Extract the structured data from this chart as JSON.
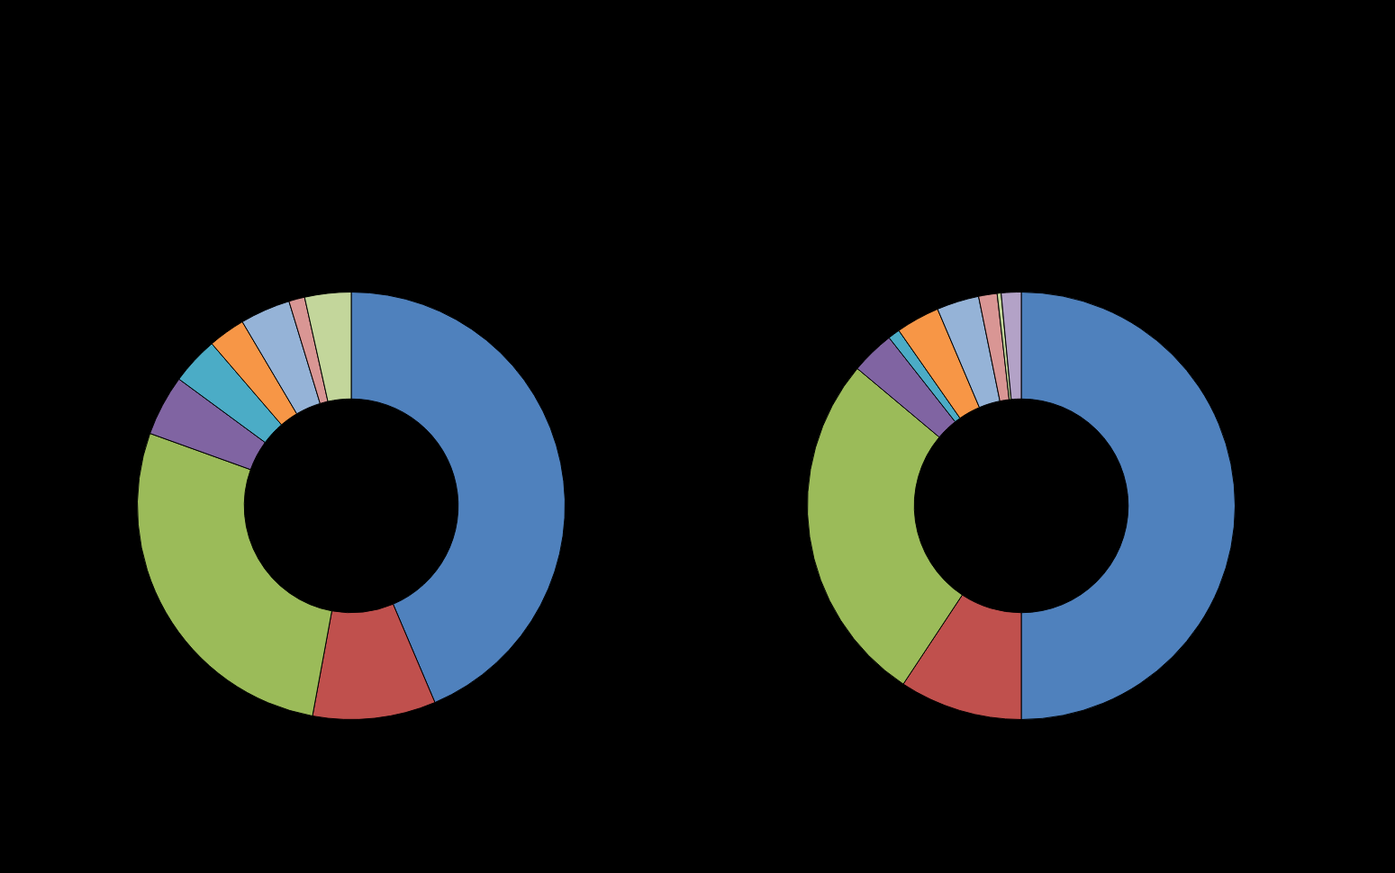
{
  "chart_data": [
    {
      "type": "donut",
      "categories": [
        null,
        null,
        null,
        null,
        null,
        null,
        null,
        null,
        null
      ],
      "values": [
        43.6,
        9.3,
        27.6,
        4.6,
        3.6,
        2.8,
        3.8,
        1.2,
        3.5
      ],
      "colors": [
        "#4f81bd",
        "#c0504d",
        "#9bbb59",
        "#8064a2",
        "#4bacc6",
        "#f79646",
        "#95b3d7",
        "#d99694",
        "#c3d69b"
      ]
    },
    {
      "type": "donut",
      "categories": [
        null,
        null,
        null,
        null,
        null,
        null,
        null,
        null,
        null,
        null
      ],
      "values": [
        50,
        9.3,
        26.8,
        3.3,
        0.9,
        3.3,
        3.2,
        1.4,
        0.3,
        1.5
      ],
      "colors": [
        "#4f81bd",
        "#c0504d",
        "#9bbb59",
        "#8064a2",
        "#4bacc6",
        "#f79646",
        "#95b3d7",
        "#d99694",
        "#c3d69b",
        "#b3a2c7"
      ]
    }
  ]
}
